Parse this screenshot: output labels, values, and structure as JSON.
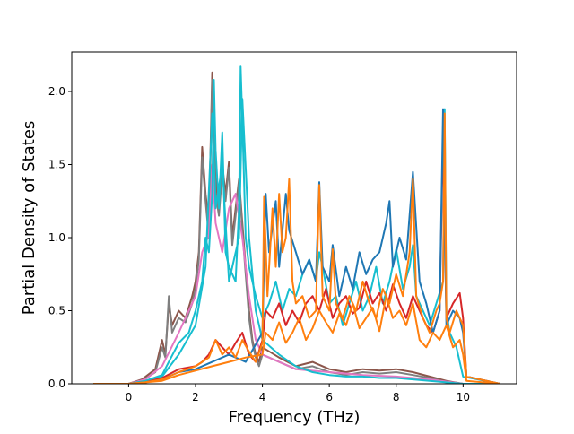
{
  "chart_data": {
    "type": "line",
    "title": "",
    "xlabel": "Frequency (THz)",
    "ylabel": "Partial Density of States",
    "xlim": [
      -1.7,
      11.6
    ],
    "ylim": [
      0,
      2.27
    ],
    "xticks": [
      0,
      2,
      4,
      6,
      8,
      10
    ],
    "xtick_labels": [
      "0",
      "2",
      "4",
      "6",
      "8",
      "10"
    ],
    "yticks": [
      0.0,
      0.5,
      1.0,
      1.5,
      2.0
    ],
    "ytick_labels": [
      "0.0",
      "0.5",
      "1.0",
      "1.5",
      "2.0"
    ],
    "grid": false,
    "legend": "none",
    "series": [
      {
        "color": "#8c564b",
        "x": [
          -1.05,
          0,
          0.4,
          0.8,
          1.0,
          1.1,
          1.2,
          1.3,
          1.5,
          1.7,
          1.9,
          2.0,
          2.1,
          2.2,
          2.3,
          2.4,
          2.5,
          2.6,
          2.7,
          2.8,
          2.9,
          3.0,
          3.1,
          3.2,
          3.3,
          3.4,
          3.5,
          3.6,
          3.7,
          3.8,
          3.9,
          4.0,
          4.5,
          5.0,
          5.5,
          6.0,
          6.5,
          7.0,
          7.5,
          8.0,
          8.5,
          9.0,
          9.5,
          10.0,
          11.1
        ],
        "values": [
          0,
          0,
          0.03,
          0.1,
          0.3,
          0.2,
          0.55,
          0.4,
          0.5,
          0.45,
          0.6,
          0.7,
          0.9,
          1.62,
          1.3,
          1.1,
          2.13,
          1.4,
          1.2,
          1.5,
          1.3,
          1.52,
          1.0,
          1.2,
          1.4,
          1.1,
          0.8,
          0.5,
          0.3,
          0.2,
          0.15,
          0.25,
          0.18,
          0.12,
          0.15,
          0.1,
          0.08,
          0.1,
          0.09,
          0.1,
          0.08,
          0.05,
          0.02,
          0,
          0
        ]
      },
      {
        "color": "#7f7f7f",
        "x": [
          -1.05,
          0,
          0.4,
          0.8,
          1.0,
          1.1,
          1.2,
          1.3,
          1.5,
          1.7,
          1.9,
          2.0,
          2.1,
          2.2,
          2.3,
          2.4,
          2.5,
          2.6,
          2.7,
          2.8,
          2.9,
          3.0,
          3.1,
          3.2,
          3.3,
          3.4,
          3.5,
          3.6,
          3.7,
          3.8,
          3.9,
          4.0,
          4.5,
          5.0,
          5.5,
          6.0,
          6.5,
          7.0,
          7.5,
          8.0,
          8.5,
          9.0,
          9.5,
          10.0,
          11.1
        ],
        "values": [
          0,
          0,
          0.02,
          0.08,
          0.25,
          0.18,
          0.6,
          0.35,
          0.45,
          0.42,
          0.55,
          0.65,
          0.85,
          1.55,
          1.25,
          1.0,
          2.08,
          1.3,
          1.15,
          1.45,
          1.25,
          1.48,
          0.95,
          1.15,
          1.38,
          1.05,
          0.75,
          0.45,
          0.28,
          0.18,
          0.12,
          0.2,
          0.15,
          0.1,
          0.12,
          0.08,
          0.06,
          0.08,
          0.07,
          0.08,
          0.06,
          0.04,
          0.01,
          0,
          0
        ]
      },
      {
        "color": "#e377c2",
        "x": [
          -1.05,
          0,
          0.5,
          1.0,
          1.5,
          2.0,
          2.2,
          2.4,
          2.5,
          2.6,
          2.8,
          3.0,
          3.2,
          3.4,
          3.6,
          3.8,
          4.0,
          4.5,
          5.0,
          6.0,
          7.0,
          8.0,
          9.0,
          10.0,
          11.1
        ],
        "values": [
          0,
          0,
          0.03,
          0.12,
          0.35,
          0.6,
          0.9,
          1.02,
          1.5,
          1.1,
          0.9,
          1.2,
          1.3,
          1.0,
          0.6,
          0.3,
          0.2,
          0.15,
          0.1,
          0.08,
          0.06,
          0.05,
          0.03,
          0,
          0
        ]
      },
      {
        "color": "#17becf",
        "x": [
          -1.05,
          0,
          0.5,
          1.0,
          1.2,
          1.5,
          1.8,
          2.0,
          2.2,
          2.3,
          2.4,
          2.5,
          2.55,
          2.6,
          2.7,
          2.8,
          2.9,
          3.0,
          3.2,
          3.3,
          3.35,
          3.4,
          3.5,
          3.6,
          3.8,
          4.0,
          4.2,
          4.4,
          4.6,
          4.8,
          5.0,
          5.2,
          5.4,
          5.6,
          5.7,
          5.8,
          6.0,
          6.2,
          6.4,
          6.6,
          6.8,
          7.0,
          7.2,
          7.4,
          7.6,
          7.8,
          8.0,
          8.2,
          8.4,
          8.5,
          8.6,
          8.8,
          9.0,
          9.2,
          9.4,
          9.45,
          9.5,
          9.6,
          9.8,
          10.0,
          11.1
        ],
        "values": [
          0,
          0,
          0.02,
          0.06,
          0.15,
          0.28,
          0.35,
          0.5,
          0.7,
          1.0,
          0.9,
          1.3,
          2.08,
          1.6,
          1.2,
          1.72,
          0.9,
          0.8,
          0.7,
          1.2,
          2.17,
          1.8,
          1.0,
          0.8,
          0.6,
          0.45,
          0.55,
          0.7,
          0.5,
          0.65,
          0.6,
          0.75,
          0.85,
          0.7,
          0.9,
          0.8,
          0.55,
          0.6,
          0.4,
          0.55,
          0.7,
          0.5,
          0.6,
          0.8,
          0.55,
          0.7,
          0.92,
          0.65,
          0.8,
          0.95,
          0.6,
          0.5,
          0.4,
          0.55,
          0.7,
          1.88,
          0.5,
          0.35,
          0.25,
          0.05,
          0
        ]
      },
      {
        "color": "#17becf",
        "x": [
          -1.05,
          0,
          0.5,
          1.0,
          1.5,
          2.0,
          2.3,
          2.5,
          2.6,
          2.8,
          3.0,
          3.3,
          3.4,
          3.6,
          3.8,
          4.0,
          4.5,
          5.0,
          5.5,
          6.0,
          6.5,
          7.0,
          7.5,
          8.0,
          8.5,
          9.0,
          9.5,
          10.0,
          11.1
        ],
        "values": [
          0,
          0,
          0.01,
          0.05,
          0.2,
          0.4,
          0.8,
          1.85,
          1.2,
          1.5,
          0.7,
          1.0,
          1.95,
          1.0,
          0.5,
          0.3,
          0.2,
          0.12,
          0.08,
          0.06,
          0.05,
          0.05,
          0.04,
          0.04,
          0.03,
          0.02,
          0.01,
          0,
          0
        ]
      },
      {
        "color": "#d62728",
        "x": [
          -1.05,
          0,
          0.5,
          1.0,
          1.5,
          2.0,
          2.2,
          2.4,
          2.6,
          2.8,
          3.0,
          3.2,
          3.4,
          3.6,
          3.8,
          4.0,
          4.1,
          4.3,
          4.5,
          4.7,
          4.9,
          5.1,
          5.3,
          5.5,
          5.7,
          5.9,
          6.1,
          6.3,
          6.5,
          6.7,
          6.9,
          7.1,
          7.3,
          7.5,
          7.7,
          7.9,
          8.1,
          8.3,
          8.5,
          8.7,
          8.9,
          9.1,
          9.3,
          9.4,
          9.5,
          9.7,
          9.9,
          10.0,
          10.1,
          11.1
        ],
        "values": [
          0,
          0,
          0.01,
          0.04,
          0.1,
          0.12,
          0.15,
          0.2,
          0.3,
          0.25,
          0.2,
          0.28,
          0.35,
          0.2,
          0.15,
          0.3,
          0.5,
          0.45,
          0.55,
          0.4,
          0.5,
          0.42,
          0.55,
          0.6,
          0.5,
          0.65,
          0.45,
          0.55,
          0.6,
          0.48,
          0.52,
          0.7,
          0.55,
          0.62,
          0.5,
          0.68,
          0.55,
          0.45,
          0.6,
          0.5,
          0.4,
          0.35,
          0.5,
          1.7,
          0.45,
          0.55,
          0.62,
          0.45,
          0.05,
          0
        ]
      },
      {
        "color": "#1f77b4",
        "x": [
          -1.05,
          0,
          0.5,
          1.0,
          1.5,
          2.0,
          2.5,
          3.0,
          3.5,
          4.0,
          4.1,
          4.2,
          4.4,
          4.5,
          4.7,
          4.8,
          5.0,
          5.2,
          5.4,
          5.6,
          5.7,
          5.8,
          6.0,
          6.1,
          6.3,
          6.5,
          6.7,
          6.9,
          7.1,
          7.3,
          7.5,
          7.7,
          7.8,
          7.9,
          8.1,
          8.3,
          8.5,
          8.7,
          8.9,
          9.1,
          9.3,
          9.4,
          9.5,
          9.7,
          9.9,
          10.0,
          10.1,
          11.1
        ],
        "values": [
          0,
          0,
          0.01,
          0.03,
          0.08,
          0.1,
          0.15,
          0.2,
          0.15,
          0.35,
          1.3,
          0.9,
          1.25,
          0.8,
          1.3,
          1.05,
          0.9,
          0.75,
          0.85,
          0.7,
          1.38,
          0.8,
          0.7,
          0.95,
          0.6,
          0.8,
          0.65,
          0.9,
          0.75,
          0.85,
          0.9,
          1.1,
          1.25,
          0.8,
          1.0,
          0.85,
          1.45,
          0.7,
          0.55,
          0.35,
          0.5,
          1.88,
          0.4,
          0.5,
          0.45,
          0.35,
          0.05,
          0
        ]
      },
      {
        "color": "#ff7f0e",
        "x": [
          -1.05,
          0,
          0.5,
          1.0,
          1.5,
          2.0,
          2.2,
          2.4,
          2.6,
          2.8,
          3.0,
          3.2,
          3.4,
          3.6,
          3.8,
          4.0,
          4.05,
          4.15,
          4.3,
          4.4,
          4.5,
          4.6,
          4.7,
          4.8,
          4.9,
          5.0,
          5.2,
          5.4,
          5.6,
          5.7,
          5.8,
          6.0,
          6.1,
          6.2,
          6.4,
          6.6,
          6.8,
          7.0,
          7.2,
          7.4,
          7.6,
          7.8,
          8.0,
          8.2,
          8.4,
          8.5,
          8.6,
          8.8,
          9.0,
          9.2,
          9.3,
          9.4,
          9.45,
          9.5,
          9.6,
          9.8,
          10.0,
          10.1,
          11.1
        ],
        "values": [
          0,
          0,
          0.01,
          0.03,
          0.08,
          0.12,
          0.15,
          0.18,
          0.3,
          0.2,
          0.25,
          0.18,
          0.3,
          0.22,
          0.15,
          0.28,
          1.28,
          0.6,
          1.2,
          0.8,
          1.3,
          0.9,
          1.0,
          1.4,
          0.7,
          0.55,
          0.6,
          0.45,
          0.5,
          1.36,
          0.6,
          0.5,
          0.92,
          0.55,
          0.45,
          0.6,
          0.5,
          0.7,
          0.55,
          0.45,
          0.65,
          0.55,
          0.75,
          0.6,
          0.9,
          1.4,
          0.6,
          0.45,
          0.35,
          0.5,
          0.55,
          0.7,
          1.85,
          0.45,
          0.35,
          0.5,
          0.4,
          0.05,
          0
        ]
      },
      {
        "color": "#ff7f0e",
        "x": [
          -1.05,
          0,
          0.5,
          1.0,
          1.5,
          2.0,
          2.5,
          3.0,
          3.5,
          4.0,
          4.1,
          4.3,
          4.5,
          4.7,
          4.9,
          5.1,
          5.3,
          5.5,
          5.7,
          5.9,
          6.1,
          6.3,
          6.5,
          6.7,
          6.9,
          7.1,
          7.3,
          7.5,
          7.7,
          7.9,
          8.1,
          8.3,
          8.5,
          8.7,
          8.9,
          9.1,
          9.3,
          9.5,
          9.7,
          9.9,
          10.0,
          10.1,
          11.1
        ],
        "values": [
          0,
          0,
          0.01,
          0.02,
          0.06,
          0.09,
          0.12,
          0.15,
          0.18,
          0.2,
          0.35,
          0.3,
          0.42,
          0.28,
          0.35,
          0.45,
          0.3,
          0.38,
          0.5,
          0.42,
          0.35,
          0.48,
          0.4,
          0.55,
          0.38,
          0.45,
          0.52,
          0.36,
          0.6,
          0.45,
          0.5,
          0.4,
          0.55,
          0.3,
          0.25,
          0.35,
          0.3,
          0.4,
          0.25,
          0.3,
          0.2,
          0.02,
          0
        ]
      }
    ]
  }
}
